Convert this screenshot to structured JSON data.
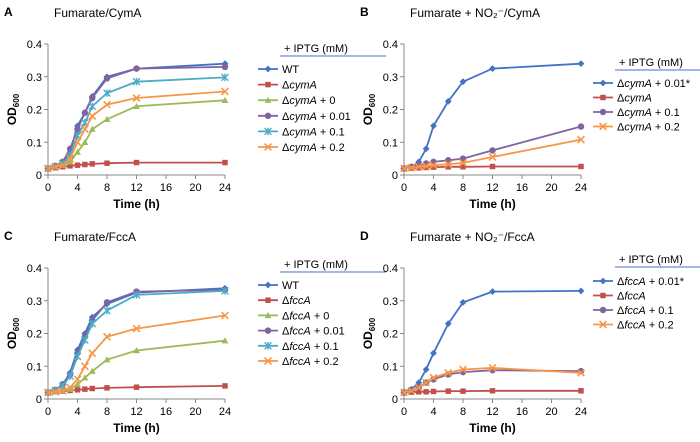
{
  "chart_data": [
    {
      "panel": "A",
      "title": "Fumarate/CymA",
      "type": "line",
      "xlabel": "Time (h)",
      "ylabel": "OD",
      "ylabel_sub": "600",
      "xlim": [
        0,
        24
      ],
      "ylim": [
        0,
        0.4
      ],
      "xticks": [
        0,
        4,
        8,
        12,
        16,
        20,
        24
      ],
      "yticks": [
        0,
        0.1,
        0.2,
        0.3,
        0.4
      ],
      "xtick_labels": [
        "0",
        "4",
        "8",
        "12",
        "16",
        "20",
        "24"
      ],
      "ytick_labels": [
        "0",
        "0.1",
        "0.2",
        "0.3",
        "0.4"
      ],
      "legend_title": "+ IPTG (mM)",
      "series": [
        {
          "name": "WT",
          "label_pre": "WT",
          "label_italic": "",
          "label_post": "",
          "color": "#4472c4",
          "marker": "diamond",
          "x": [
            0,
            1,
            2,
            3,
            4,
            5,
            6,
            8,
            12,
            24
          ],
          "y": [
            0.02,
            0.025,
            0.04,
            0.07,
            0.15,
            0.19,
            0.24,
            0.3,
            0.325,
            0.34
          ]
        },
        {
          "name": "ΔcymA",
          "label_pre": "Δ",
          "label_italic": "cymA",
          "label_post": "",
          "color": "#c0504d",
          "marker": "square",
          "x": [
            0,
            1,
            2,
            3,
            4,
            5,
            6,
            8,
            12,
            24
          ],
          "y": [
            0.02,
            0.022,
            0.025,
            0.028,
            0.03,
            0.032,
            0.034,
            0.036,
            0.038,
            0.038
          ]
        },
        {
          "name": "ΔcymA + 0",
          "label_pre": "Δ",
          "label_italic": "cymA",
          "label_post": " + 0",
          "color": "#9bbb59",
          "marker": "triangle",
          "x": [
            0,
            1,
            2,
            3,
            4,
            5,
            6,
            8,
            12,
            24
          ],
          "y": [
            0.02,
            0.025,
            0.03,
            0.04,
            0.07,
            0.1,
            0.14,
            0.17,
            0.21,
            0.228
          ]
        },
        {
          "name": "ΔcymA + 0.01",
          "label_pre": "Δ",
          "label_italic": "cymA",
          "label_post": " + 0.01",
          "color": "#8064a2",
          "marker": "circle",
          "x": [
            0,
            1,
            2,
            3,
            4,
            5,
            6,
            8,
            12,
            24
          ],
          "y": [
            0.02,
            0.028,
            0.04,
            0.08,
            0.14,
            0.19,
            0.235,
            0.295,
            0.325,
            0.33
          ]
        },
        {
          "name": "ΔcymA + 0.1",
          "label_pre": "Δ",
          "label_italic": "cymA",
          "label_post": " + 0.1",
          "color": "#4bacc6",
          "marker": "star",
          "x": [
            0,
            1,
            2,
            3,
            4,
            5,
            6,
            8,
            12,
            24
          ],
          "y": [
            0.02,
            0.026,
            0.035,
            0.06,
            0.12,
            0.16,
            0.21,
            0.25,
            0.285,
            0.298
          ]
        },
        {
          "name": "ΔcymA + 0.2",
          "label_pre": "Δ",
          "label_italic": "cymA",
          "label_post": " + 0.2",
          "color": "#f79646",
          "marker": "x",
          "x": [
            0,
            1,
            2,
            3,
            4,
            5,
            6,
            8,
            12,
            24
          ],
          "y": [
            0.02,
            0.025,
            0.03,
            0.05,
            0.1,
            0.14,
            0.18,
            0.215,
            0.235,
            0.255
          ]
        }
      ]
    },
    {
      "panel": "B",
      "title": "Fumarate + NO₂⁻/CymA",
      "type": "line",
      "xlabel": "Time (h)",
      "ylabel": "OD",
      "ylabel_sub": "600",
      "xlim": [
        0,
        24
      ],
      "ylim": [
        0,
        0.4
      ],
      "xticks": [
        0,
        4,
        8,
        12,
        16,
        20,
        24
      ],
      "yticks": [
        0,
        0.1,
        0.2,
        0.3,
        0.4
      ],
      "xtick_labels": [
        "0",
        "4",
        "8",
        "12",
        "16",
        "20",
        "24"
      ],
      "ytick_labels": [
        "0",
        "0.1",
        "0.2",
        "0.3",
        "0.4"
      ],
      "legend_title": "+ IPTG (mM)",
      "series": [
        {
          "name": "ΔcymA + 0.01*",
          "label_pre": "Δ",
          "label_italic": "cymA",
          "label_post": " + 0.01*",
          "color": "#4472c4",
          "marker": "diamond",
          "x": [
            0,
            1,
            2,
            3,
            4,
            6,
            8,
            12,
            24
          ],
          "y": [
            0.02,
            0.025,
            0.04,
            0.08,
            0.15,
            0.225,
            0.285,
            0.325,
            0.34
          ]
        },
        {
          "name": "ΔcymA",
          "label_pre": "Δ",
          "label_italic": "cymA",
          "label_post": "",
          "color": "#c0504d",
          "marker": "square",
          "x": [
            0,
            1,
            2,
            3,
            4,
            6,
            8,
            12,
            24
          ],
          "y": [
            0.02,
            0.021,
            0.022,
            0.023,
            0.024,
            0.025,
            0.025,
            0.026,
            0.026
          ]
        },
        {
          "name": "ΔcymA + 0.1",
          "label_pre": "Δ",
          "label_italic": "cymA",
          "label_post": " + 0.1",
          "color": "#8064a2",
          "marker": "circle",
          "x": [
            0,
            1,
            2,
            3,
            4,
            6,
            8,
            12,
            24
          ],
          "y": [
            0.02,
            0.025,
            0.03,
            0.035,
            0.04,
            0.045,
            0.05,
            0.075,
            0.148
          ]
        },
        {
          "name": "ΔcymA + 0.2",
          "label_pre": "Δ",
          "label_italic": "cymA",
          "label_post": " + 0.2",
          "color": "#f79646",
          "marker": "x",
          "x": [
            0,
            1,
            2,
            3,
            4,
            6,
            8,
            12,
            24
          ],
          "y": [
            0.02,
            0.022,
            0.025,
            0.027,
            0.03,
            0.033,
            0.037,
            0.055,
            0.108
          ]
        }
      ]
    },
    {
      "panel": "C",
      "title": "Fumarate/FccA",
      "type": "line",
      "xlabel": "Time (h)",
      "ylabel": "OD",
      "ylabel_sub": "600",
      "xlim": [
        0,
        24
      ],
      "ylim": [
        0,
        0.4
      ],
      "xticks": [
        0,
        4,
        8,
        12,
        16,
        20,
        24
      ],
      "yticks": [
        0,
        0.1,
        0.2,
        0.3,
        0.4
      ],
      "xtick_labels": [
        "0",
        "4",
        "8",
        "12",
        "16",
        "20",
        "24"
      ],
      "ytick_labels": [
        "0",
        "0.1",
        "0.2",
        "0.3",
        "0.4"
      ],
      "legend_title": "+ IPTG (mM)",
      "series": [
        {
          "name": "WT",
          "label_pre": "WT",
          "label_italic": "",
          "label_post": "",
          "color": "#4472c4",
          "marker": "diamond",
          "x": [
            0,
            1,
            2,
            3,
            4,
            5,
            6,
            8,
            12,
            24
          ],
          "y": [
            0.02,
            0.025,
            0.045,
            0.08,
            0.15,
            0.2,
            0.25,
            0.29,
            0.325,
            0.338
          ]
        },
        {
          "name": "ΔfccA",
          "label_pre": "Δ",
          "label_italic": "fccA",
          "label_post": "",
          "color": "#c0504d",
          "marker": "square",
          "x": [
            0,
            1,
            2,
            3,
            4,
            5,
            6,
            8,
            12,
            24
          ],
          "y": [
            0.02,
            0.022,
            0.024,
            0.026,
            0.028,
            0.03,
            0.032,
            0.034,
            0.036,
            0.04
          ]
        },
        {
          "name": "ΔfccA + 0",
          "label_pre": "Δ",
          "label_italic": "fccA",
          "label_post": " + 0",
          "color": "#9bbb59",
          "marker": "triangle",
          "x": [
            0,
            1,
            2,
            3,
            4,
            5,
            6,
            8,
            12,
            24
          ],
          "y": [
            0.02,
            0.022,
            0.025,
            0.03,
            0.045,
            0.065,
            0.085,
            0.12,
            0.148,
            0.178
          ]
        },
        {
          "name": "ΔfccA + 0.01",
          "label_pre": "Δ",
          "label_italic": "fccA",
          "label_post": " + 0.01",
          "color": "#8064a2",
          "marker": "circle",
          "x": [
            0,
            1,
            2,
            3,
            4,
            5,
            6,
            8,
            12,
            24
          ],
          "y": [
            0.02,
            0.028,
            0.045,
            0.075,
            0.14,
            0.19,
            0.24,
            0.295,
            0.328,
            0.333
          ]
        },
        {
          "name": "ΔfccA + 0.1",
          "label_pre": "Δ",
          "label_italic": "fccA",
          "label_post": " + 0.1",
          "color": "#4bacc6",
          "marker": "star",
          "x": [
            0,
            1,
            2,
            3,
            4,
            5,
            6,
            8,
            12,
            24
          ],
          "y": [
            0.02,
            0.026,
            0.04,
            0.07,
            0.13,
            0.18,
            0.23,
            0.27,
            0.318,
            0.33
          ]
        },
        {
          "name": "ΔfccA + 0.2",
          "label_pre": "Δ",
          "label_italic": "fccA",
          "label_post": " + 0.2",
          "color": "#f79646",
          "marker": "x",
          "x": [
            0,
            1,
            2,
            3,
            4,
            5,
            6,
            8,
            12,
            24
          ],
          "y": [
            0.02,
            0.022,
            0.025,
            0.035,
            0.06,
            0.1,
            0.14,
            0.19,
            0.215,
            0.255
          ]
        }
      ]
    },
    {
      "panel": "D",
      "title": "Fumarate + NO₂⁻/FccA",
      "type": "line",
      "xlabel": "Time (h)",
      "ylabel": "OD",
      "ylabel_sub": "600",
      "xlim": [
        0,
        24
      ],
      "ylim": [
        0,
        0.4
      ],
      "xticks": [
        0,
        4,
        8,
        12,
        16,
        20,
        24
      ],
      "yticks": [
        0,
        0.1,
        0.2,
        0.3,
        0.4
      ],
      "xtick_labels": [
        "0",
        "4",
        "8",
        "12",
        "16",
        "20",
        "24"
      ],
      "ytick_labels": [
        "0",
        "0.1",
        "0.2",
        "0.3",
        "0.4"
      ],
      "legend_title": "+ IPTG (mM)",
      "series": [
        {
          "name": "ΔfccA + 0.01*",
          "label_pre": "Δ",
          "label_italic": "fccA",
          "label_post": " + 0.01*",
          "color": "#4472c4",
          "marker": "diamond",
          "x": [
            0,
            1,
            2,
            3,
            4,
            6,
            8,
            12,
            24
          ],
          "y": [
            0.02,
            0.03,
            0.05,
            0.09,
            0.14,
            0.23,
            0.295,
            0.328,
            0.33
          ]
        },
        {
          "name": "ΔfccA",
          "label_pre": "Δ",
          "label_italic": "fccA",
          "label_post": "",
          "color": "#c0504d",
          "marker": "square",
          "x": [
            0,
            1,
            2,
            3,
            4,
            6,
            8,
            12,
            24
          ],
          "y": [
            0.02,
            0.021,
            0.022,
            0.022,
            0.023,
            0.024,
            0.024,
            0.025,
            0.025
          ]
        },
        {
          "name": "ΔfccA + 0.1",
          "label_pre": "Δ",
          "label_italic": "fccA",
          "label_post": " + 0.1",
          "color": "#8064a2",
          "marker": "circle",
          "x": [
            0,
            1,
            2,
            3,
            4,
            6,
            8,
            12,
            24
          ],
          "y": [
            0.02,
            0.025,
            0.035,
            0.05,
            0.06,
            0.075,
            0.082,
            0.088,
            0.085
          ]
        },
        {
          "name": "ΔfccA + 0.2",
          "label_pre": "Δ",
          "label_italic": "fccA",
          "label_post": " + 0.2",
          "color": "#f79646",
          "marker": "x",
          "x": [
            0,
            1,
            2,
            3,
            4,
            6,
            8,
            12,
            24
          ],
          "y": [
            0.02,
            0.025,
            0.035,
            0.05,
            0.065,
            0.08,
            0.09,
            0.095,
            0.08
          ]
        }
      ]
    }
  ]
}
